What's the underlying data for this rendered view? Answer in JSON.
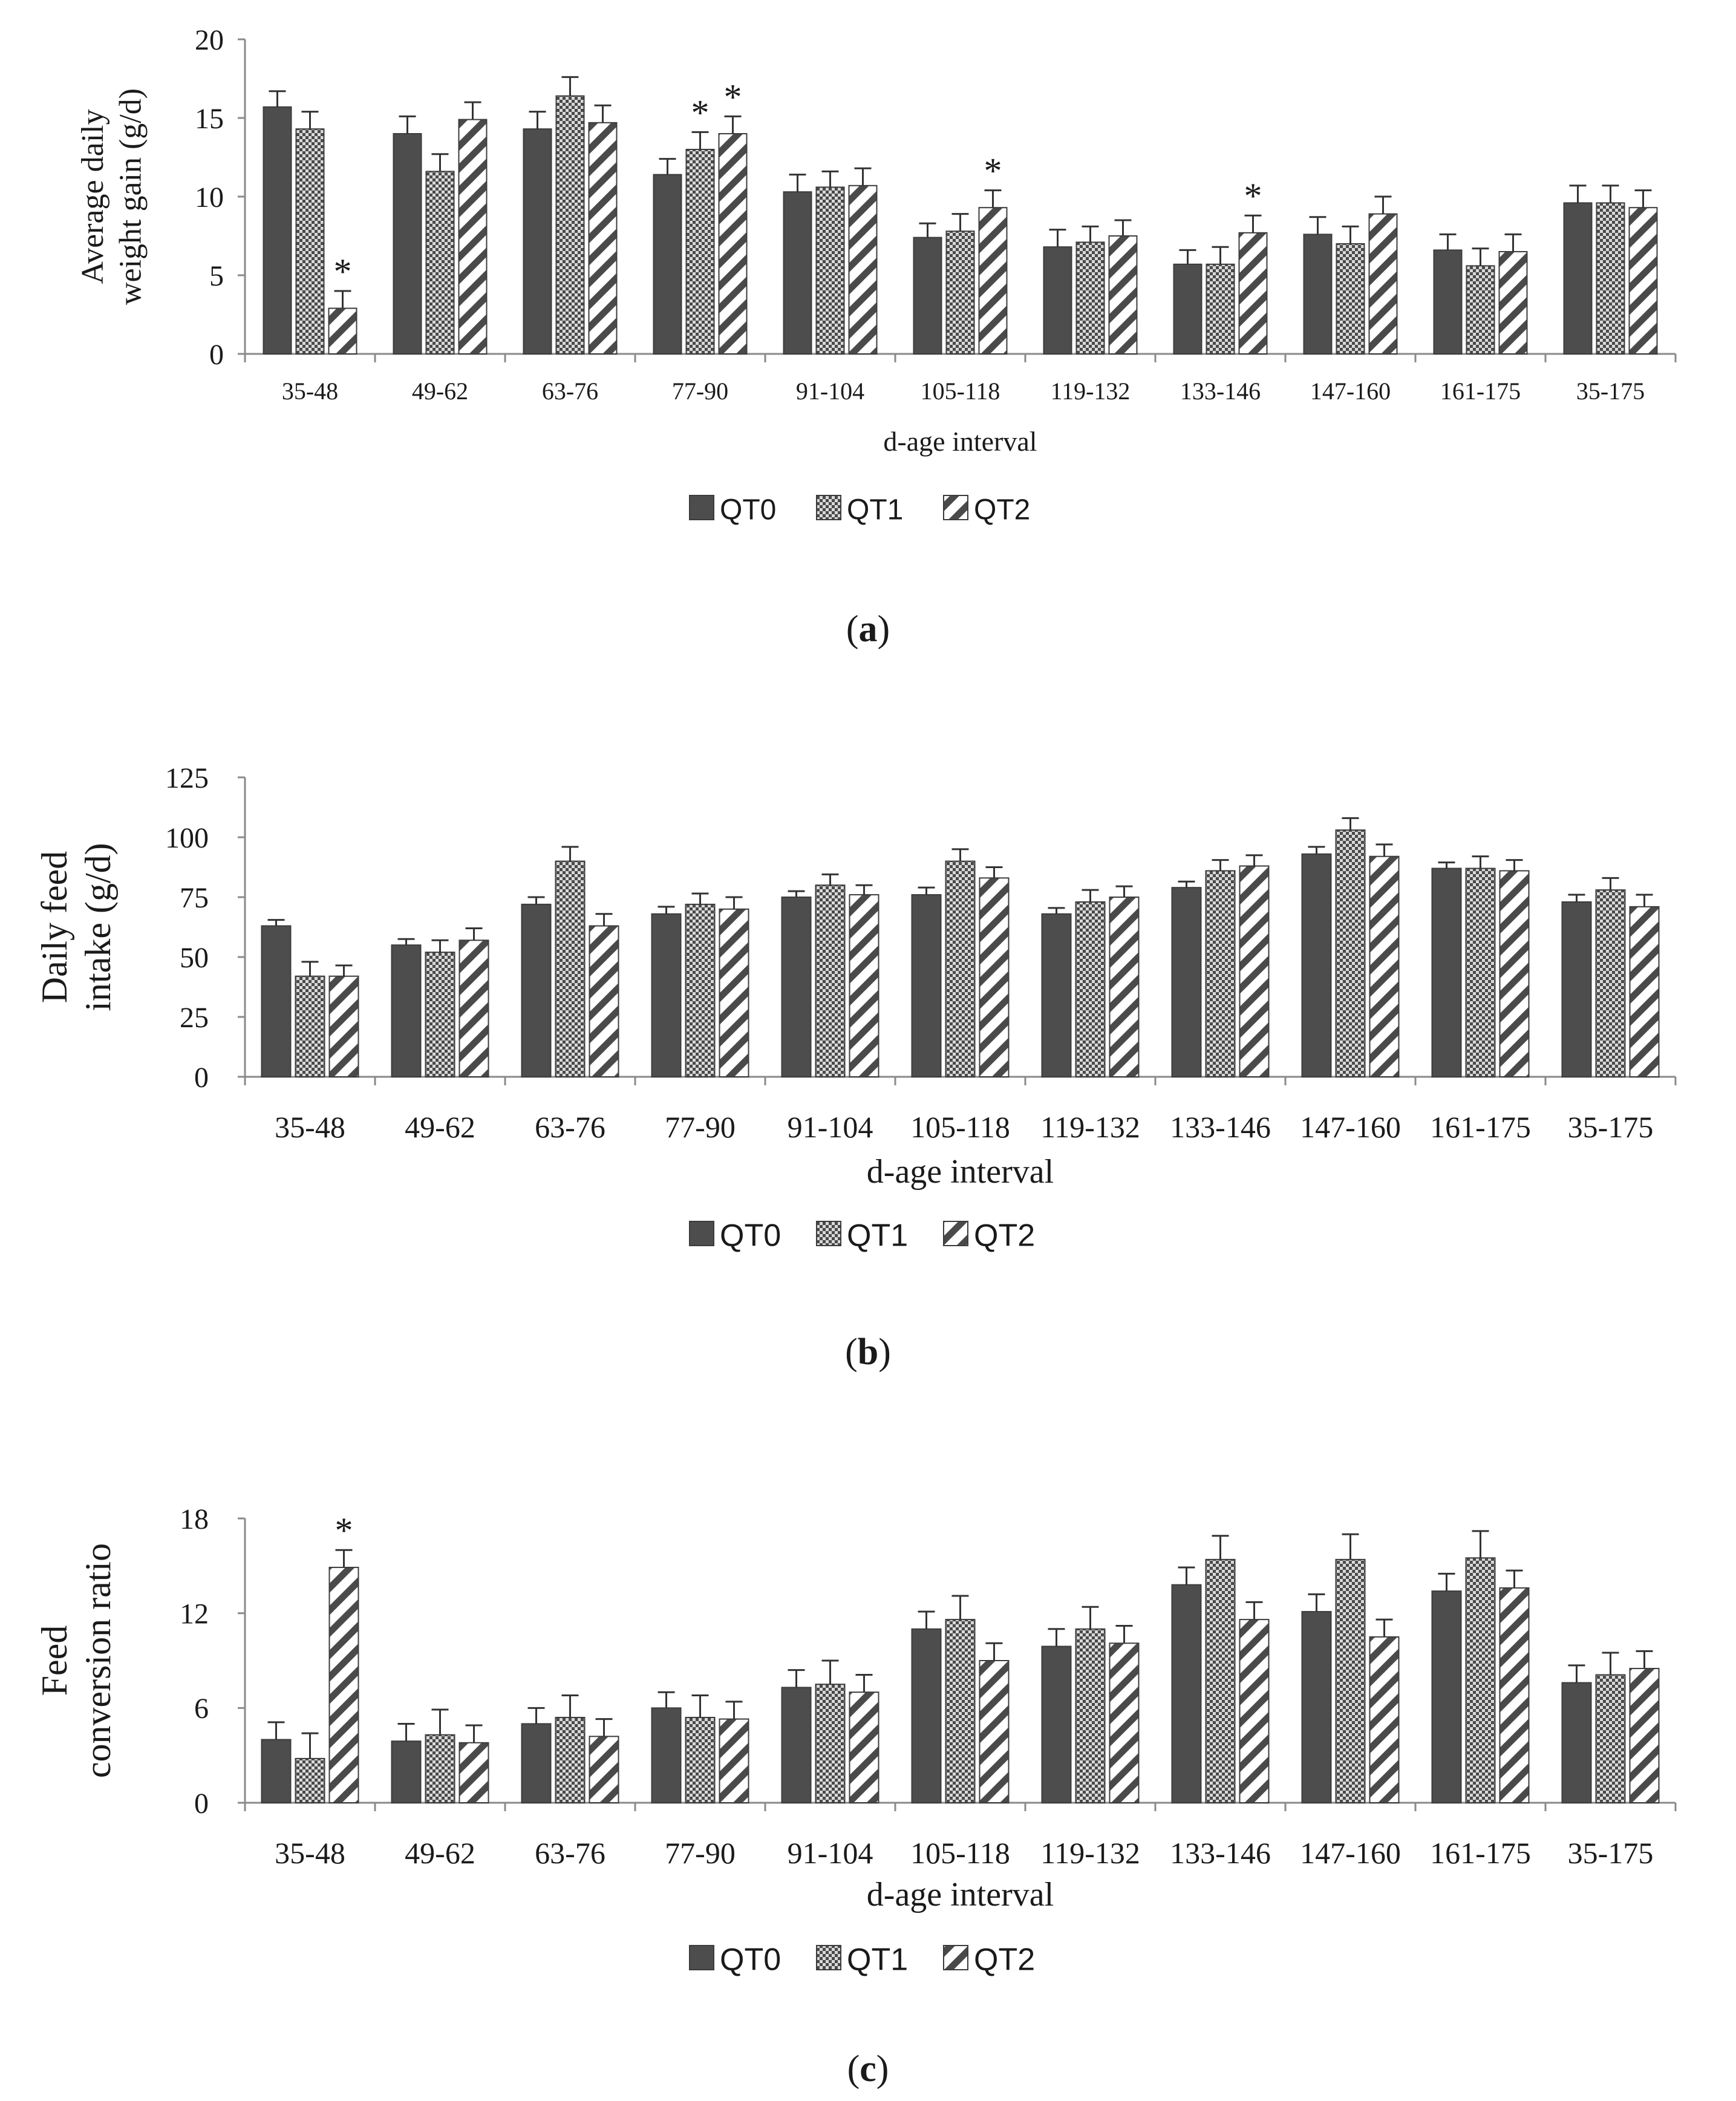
{
  "colors": {
    "qt0_fill": "#4d4d4d",
    "pattern_ink": "#4a4a4a",
    "axis": "#8a8a8a",
    "text": "#1a1a1a"
  },
  "chart_data": [
    {
      "type": "bar",
      "panel_label_open": "(",
      "panel_label_letter": "a",
      "panel_label_close": ")",
      "ylabel_lines": [
        "Average daily",
        "weight gain (g/d)"
      ],
      "xlabel": "d-age interval",
      "ylim": [
        0,
        20
      ],
      "yticks": [
        0,
        5,
        10,
        15,
        20
      ],
      "grid": false,
      "legend_position": "bottom-center",
      "categories": [
        "35-48",
        "49-62",
        "63-76",
        "77-90",
        "91-104",
        "105-118",
        "119-132",
        "133-146",
        "147-160",
        "161-175",
        "35-175"
      ],
      "series": [
        {
          "name": "QT0",
          "pattern": "solid",
          "values": [
            15.7,
            14.0,
            14.3,
            11.4,
            10.3,
            7.4,
            6.8,
            5.7,
            7.6,
            6.6,
            9.6
          ],
          "errors": [
            1.0,
            1.1,
            1.1,
            1.0,
            1.1,
            0.9,
            1.1,
            0.9,
            1.1,
            1.0,
            1.1
          ]
        },
        {
          "name": "QT1",
          "pattern": "checker",
          "values": [
            14.3,
            11.6,
            16.4,
            13.0,
            10.6,
            7.8,
            7.1,
            5.7,
            7.0,
            5.6,
            9.6
          ],
          "errors": [
            1.1,
            1.1,
            1.2,
            1.1,
            1.0,
            1.1,
            1.0,
            1.1,
            1.1,
            1.1,
            1.1
          ]
        },
        {
          "name": "QT2",
          "pattern": "diagonal",
          "values": [
            2.9,
            14.9,
            14.7,
            14.0,
            10.7,
            9.3,
            7.5,
            7.7,
            8.9,
            6.5,
            9.3
          ],
          "errors": [
            1.1,
            1.1,
            1.1,
            1.1,
            1.1,
            1.1,
            1.0,
            1.1,
            1.1,
            1.1,
            1.1
          ]
        }
      ],
      "significance": [
        {
          "category_index": 0,
          "series_index": 2,
          "mark": "*"
        },
        {
          "category_index": 3,
          "series_index": 1,
          "mark": "*"
        },
        {
          "category_index": 3,
          "series_index": 2,
          "mark": "*"
        },
        {
          "category_index": 5,
          "series_index": 2,
          "mark": "*"
        },
        {
          "category_index": 7,
          "series_index": 2,
          "mark": "*"
        }
      ]
    },
    {
      "type": "bar",
      "panel_label_open": "(",
      "panel_label_letter": "b",
      "panel_label_close": ")",
      "ylabel_lines": [
        "Daily feed",
        "intake (g/d)"
      ],
      "xlabel": "d-age interval",
      "ylim": [
        0,
        125
      ],
      "yticks": [
        0,
        25,
        50,
        75,
        100,
        125
      ],
      "grid": false,
      "legend_position": "bottom-center",
      "categories": [
        "35-48",
        "49-62",
        "63-76",
        "77-90",
        "91-104",
        "105-118",
        "119-132",
        "133-146",
        "147-160",
        "161-175",
        "35-175"
      ],
      "series": [
        {
          "name": "QT0",
          "pattern": "solid",
          "values": [
            63,
            55,
            72,
            68,
            75,
            76,
            68,
            79,
            93,
            87,
            73
          ],
          "errors": [
            2.5,
            2.5,
            3,
            3,
            2.5,
            3,
            2.5,
            2.5,
            3,
            2.5,
            3
          ]
        },
        {
          "name": "QT1",
          "pattern": "checker",
          "values": [
            42,
            52,
            90,
            72,
            80,
            90,
            73,
            86,
            103,
            87,
            78
          ],
          "errors": [
            6,
            5,
            6,
            4.5,
            4.5,
            5,
            5,
            4.5,
            5,
            5,
            5
          ]
        },
        {
          "name": "QT2",
          "pattern": "diagonal",
          "values": [
            42,
            57,
            63,
            70,
            76,
            83,
            75,
            88,
            92,
            86,
            71
          ],
          "errors": [
            4.5,
            5,
            5,
            5,
            4,
            4.5,
            4.5,
            4.5,
            5,
            4.5,
            5
          ]
        }
      ],
      "significance": []
    },
    {
      "type": "bar",
      "panel_label_open": "(",
      "panel_label_letter": "c",
      "panel_label_close": ")",
      "ylabel_lines": [
        "Feed",
        "conversion ratio"
      ],
      "xlabel": "d-age interval",
      "ylim": [
        0,
        18
      ],
      "yticks": [
        0,
        6,
        12,
        18
      ],
      "grid": false,
      "legend_position": "bottom-center",
      "categories": [
        "35-48",
        "49-62",
        "63-76",
        "77-90",
        "91-104",
        "105-118",
        "119-132",
        "133-146",
        "147-160",
        "161-175",
        "35-175"
      ],
      "series": [
        {
          "name": "QT0",
          "pattern": "solid",
          "values": [
            4.0,
            3.9,
            5.0,
            6.0,
            7.3,
            11.0,
            9.9,
            13.8,
            12.1,
            13.4,
            7.6
          ],
          "errors": [
            1.1,
            1.1,
            1.0,
            1.0,
            1.1,
            1.1,
            1.1,
            1.1,
            1.1,
            1.1,
            1.1
          ]
        },
        {
          "name": "QT1",
          "pattern": "checker",
          "values": [
            2.8,
            4.3,
            5.4,
            5.4,
            7.5,
            11.6,
            11.0,
            15.4,
            15.4,
            15.5,
            8.1
          ],
          "errors": [
            1.6,
            1.6,
            1.4,
            1.4,
            1.5,
            1.5,
            1.4,
            1.5,
            1.6,
            1.7,
            1.4
          ]
        },
        {
          "name": "QT2",
          "pattern": "diagonal",
          "values": [
            14.9,
            3.8,
            4.2,
            5.3,
            7.0,
            9.0,
            10.1,
            11.6,
            10.5,
            13.6,
            8.5
          ],
          "errors": [
            1.1,
            1.1,
            1.1,
            1.1,
            1.1,
            1.1,
            1.1,
            1.1,
            1.1,
            1.1,
            1.1
          ]
        }
      ],
      "significance": [
        {
          "category_index": 0,
          "series_index": 2,
          "mark": "*"
        }
      ]
    }
  ]
}
